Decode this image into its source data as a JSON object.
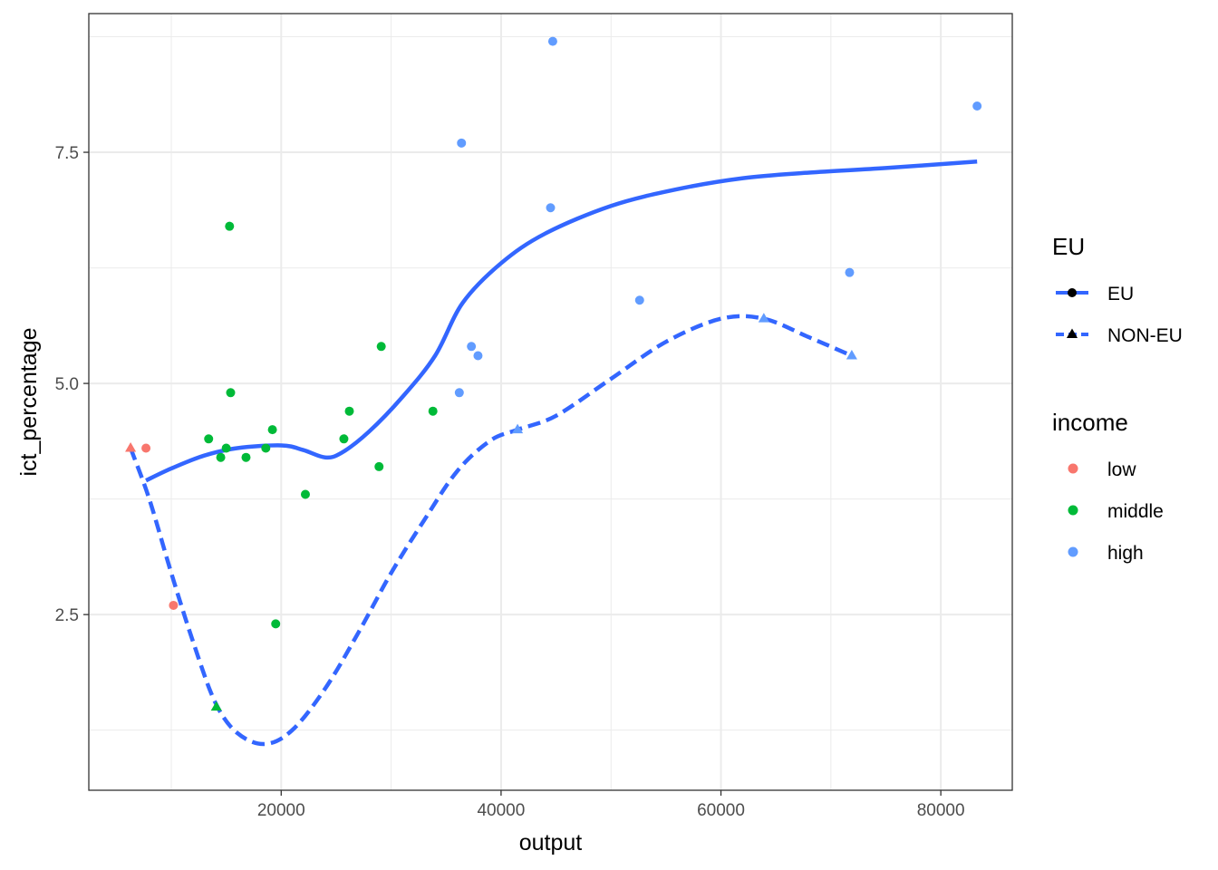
{
  "chart_data": {
    "type": "scatter",
    "title": "",
    "xlabel": "output",
    "ylabel": "ict_percentage",
    "xlim": [
      2500,
      86500
    ],
    "ylim": [
      0.6,
      9.0
    ],
    "x_ticks": [
      20000,
      40000,
      60000,
      80000
    ],
    "x_tick_labels": [
      "20000",
      "40000",
      "60000",
      "80000"
    ],
    "y_ticks": [
      2.5,
      5.0,
      7.5
    ],
    "y_tick_labels": [
      "2.5",
      "5.0",
      "7.5"
    ],
    "grid": true,
    "colors": {
      "low": "#F8766D",
      "middle": "#00BA38",
      "high": "#619CFF",
      "line": "#3366FF"
    },
    "legend": {
      "placement": "right",
      "eu": {
        "title": "EU",
        "entries": [
          {
            "label": "EU",
            "shape": "circle",
            "linetype": "solid"
          },
          {
            "label": "NON-EU",
            "shape": "triangle",
            "linetype": "dashed"
          }
        ]
      },
      "income": {
        "title": "income",
        "entries": [
          {
            "label": "low",
            "key": "low"
          },
          {
            "label": "middle",
            "key": "middle"
          },
          {
            "label": "high",
            "key": "high"
          }
        ]
      }
    },
    "points": [
      {
        "x": 7700,
        "y": 4.3,
        "income": "low",
        "eu": "EU"
      },
      {
        "x": 10200,
        "y": 2.6,
        "income": "low",
        "eu": "EU"
      },
      {
        "x": 6300,
        "y": 4.3,
        "income": "low",
        "eu": "NON-EU"
      },
      {
        "x": 13400,
        "y": 4.4,
        "income": "middle",
        "eu": "EU"
      },
      {
        "x": 14500,
        "y": 4.2,
        "income": "middle",
        "eu": "EU"
      },
      {
        "x": 15000,
        "y": 4.3,
        "income": "middle",
        "eu": "EU"
      },
      {
        "x": 15300,
        "y": 6.7,
        "income": "middle",
        "eu": "EU"
      },
      {
        "x": 15400,
        "y": 4.9,
        "income": "middle",
        "eu": "EU"
      },
      {
        "x": 16800,
        "y": 4.2,
        "income": "middle",
        "eu": "EU"
      },
      {
        "x": 18600,
        "y": 4.3,
        "income": "middle",
        "eu": "EU"
      },
      {
        "x": 19200,
        "y": 4.5,
        "income": "middle",
        "eu": "EU"
      },
      {
        "x": 19500,
        "y": 2.4,
        "income": "middle",
        "eu": "EU"
      },
      {
        "x": 22200,
        "y": 3.8,
        "income": "middle",
        "eu": "EU"
      },
      {
        "x": 25700,
        "y": 4.4,
        "income": "middle",
        "eu": "EU"
      },
      {
        "x": 26200,
        "y": 4.7,
        "income": "middle",
        "eu": "EU"
      },
      {
        "x": 28900,
        "y": 4.1,
        "income": "middle",
        "eu": "EU"
      },
      {
        "x": 29100,
        "y": 5.4,
        "income": "middle",
        "eu": "EU"
      },
      {
        "x": 33800,
        "y": 4.7,
        "income": "middle",
        "eu": "EU"
      },
      {
        "x": 14100,
        "y": 1.5,
        "income": "middle",
        "eu": "NON-EU"
      },
      {
        "x": 36200,
        "y": 4.9,
        "income": "high",
        "eu": "EU"
      },
      {
        "x": 36400,
        "y": 7.6,
        "income": "high",
        "eu": "EU"
      },
      {
        "x": 37300,
        "y": 5.4,
        "income": "high",
        "eu": "EU"
      },
      {
        "x": 37900,
        "y": 5.3,
        "income": "high",
        "eu": "EU"
      },
      {
        "x": 44500,
        "y": 6.9,
        "income": "high",
        "eu": "EU"
      },
      {
        "x": 44700,
        "y": 8.7,
        "income": "high",
        "eu": "EU"
      },
      {
        "x": 52600,
        "y": 5.9,
        "income": "high",
        "eu": "EU"
      },
      {
        "x": 71700,
        "y": 6.2,
        "income": "high",
        "eu": "EU"
      },
      {
        "x": 83300,
        "y": 8.0,
        "income": "high",
        "eu": "EU"
      },
      {
        "x": 41500,
        "y": 4.5,
        "income": "high",
        "eu": "NON-EU"
      },
      {
        "x": 63900,
        "y": 5.7,
        "income": "high",
        "eu": "NON-EU"
      },
      {
        "x": 71900,
        "y": 5.3,
        "income": "high",
        "eu": "NON-EU"
      }
    ],
    "series": [
      {
        "name": "EU",
        "linetype": "solid",
        "x": [
          7700,
          10000,
          13000,
          16000,
          20000,
          22000,
          24000,
          25500,
          28000,
          31000,
          34000,
          36500,
          40000,
          44000,
          50000,
          56000,
          62000,
          68000,
          75000,
          83300
        ],
        "y": [
          3.95,
          4.08,
          4.22,
          4.3,
          4.33,
          4.28,
          4.2,
          4.25,
          4.48,
          4.85,
          5.3,
          5.87,
          6.3,
          6.62,
          6.92,
          7.1,
          7.22,
          7.28,
          7.33,
          7.4
        ]
      },
      {
        "name": "NON-EU",
        "linetype": "dashed",
        "x": [
          6300,
          8000,
          10000,
          12000,
          14000,
          16000,
          18500,
          21000,
          24000,
          27000,
          30000,
          33000,
          36000,
          39000,
          41500,
          45000,
          50000,
          55000,
          60000,
          63900,
          68000,
          71900
        ],
        "y": [
          4.3,
          3.75,
          2.95,
          2.2,
          1.55,
          1.22,
          1.1,
          1.25,
          1.7,
          2.3,
          2.95,
          3.52,
          4.05,
          4.38,
          4.5,
          4.65,
          5.05,
          5.45,
          5.7,
          5.7,
          5.5,
          5.3
        ]
      }
    ]
  }
}
